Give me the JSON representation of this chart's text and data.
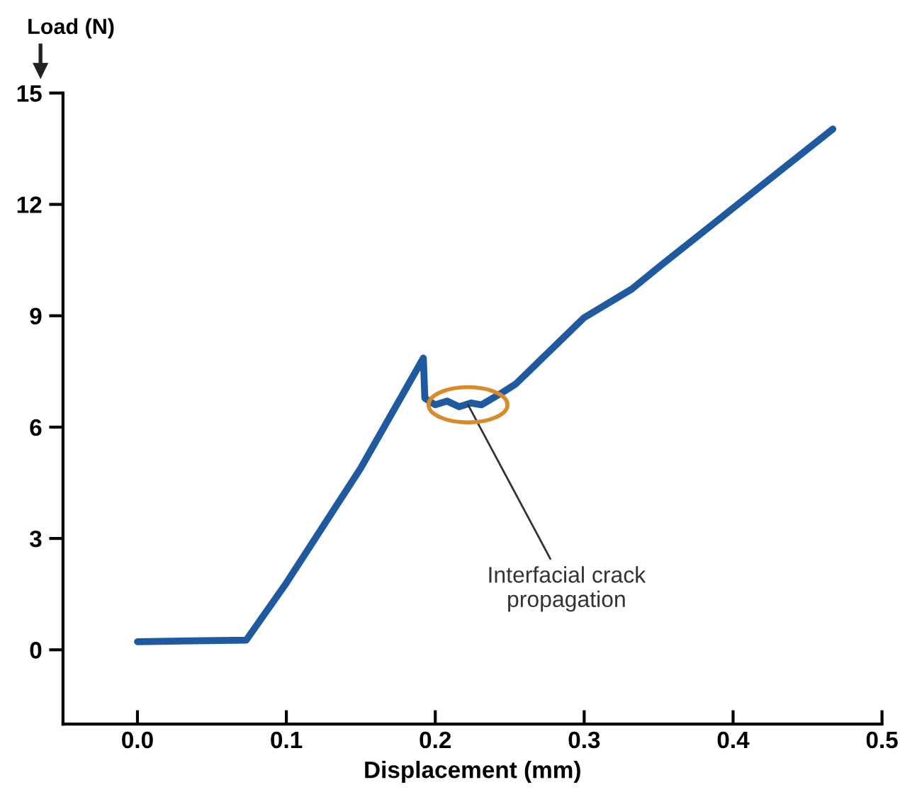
{
  "chart_data": {
    "type": "line",
    "xlabel": "Displacement (mm)",
    "ylabel": "Load (N)",
    "x": [
      0,
      0.073,
      0.1,
      0.15,
      0.192,
      0.193,
      0.2,
      0.208,
      0.216,
      0.224,
      0.231,
      0.245,
      0.254,
      0.3,
      0.332,
      0.351,
      0.4,
      0.467
    ],
    "series": [
      {
        "color": "#1f5aa0",
        "values": [
          0.22,
          0.26,
          1.8,
          4.9,
          7.86,
          6.78,
          6.6,
          6.7,
          6.55,
          6.65,
          6.6,
          6.93,
          7.16,
          8.95,
          9.72,
          10.34,
          11.9,
          14.03
        ]
      }
    ],
    "xlim": [
      -0.05,
      0.5
    ],
    "ylim": [
      -2,
      15
    ],
    "xticks": [
      {
        "value": 0,
        "label": "0.0"
      },
      0.1,
      0.2,
      0.3,
      0.4,
      0.5
    ],
    "yticks": [
      0,
      3,
      6,
      9,
      12,
      15
    ],
    "grid": false,
    "legend": false,
    "marker": "none",
    "line_style": "solid",
    "annotations": [
      {
        "text": "Interfacial crack\npropagation",
        "x": 0.222,
        "y": 6.6
      }
    ]
  }
}
